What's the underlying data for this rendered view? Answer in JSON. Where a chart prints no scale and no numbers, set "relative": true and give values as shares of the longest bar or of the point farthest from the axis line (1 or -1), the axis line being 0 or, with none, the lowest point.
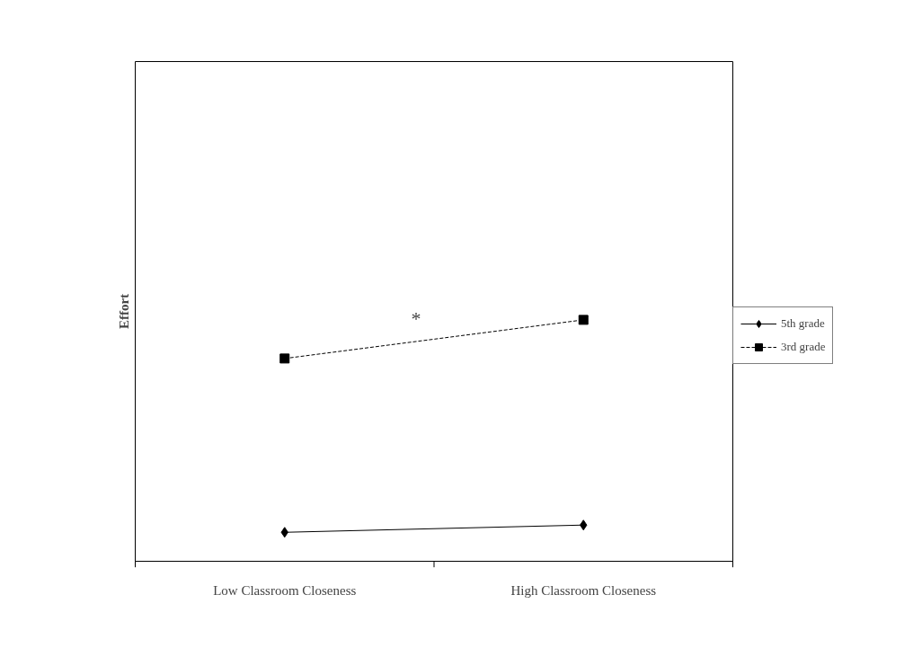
{
  "chart_data": {
    "type": "line",
    "relative": true,
    "ylabel": "Effort",
    "categories": [
      "Low Classroom Closeness",
      "High Classroom Closeness"
    ],
    "series": [
      {
        "name": "5th grade",
        "color": "#000000",
        "values": [
          0.12,
          0.15
        ],
        "marker": "diamond",
        "line_style": "solid"
      },
      {
        "name": "3rd grade",
        "color": "#000000",
        "values": [
          0.84,
          1.0
        ],
        "marker": "square",
        "line_style": "dashed"
      }
    ],
    "annotations": [
      "*"
    ],
    "legend": "right",
    "grid": false
  }
}
